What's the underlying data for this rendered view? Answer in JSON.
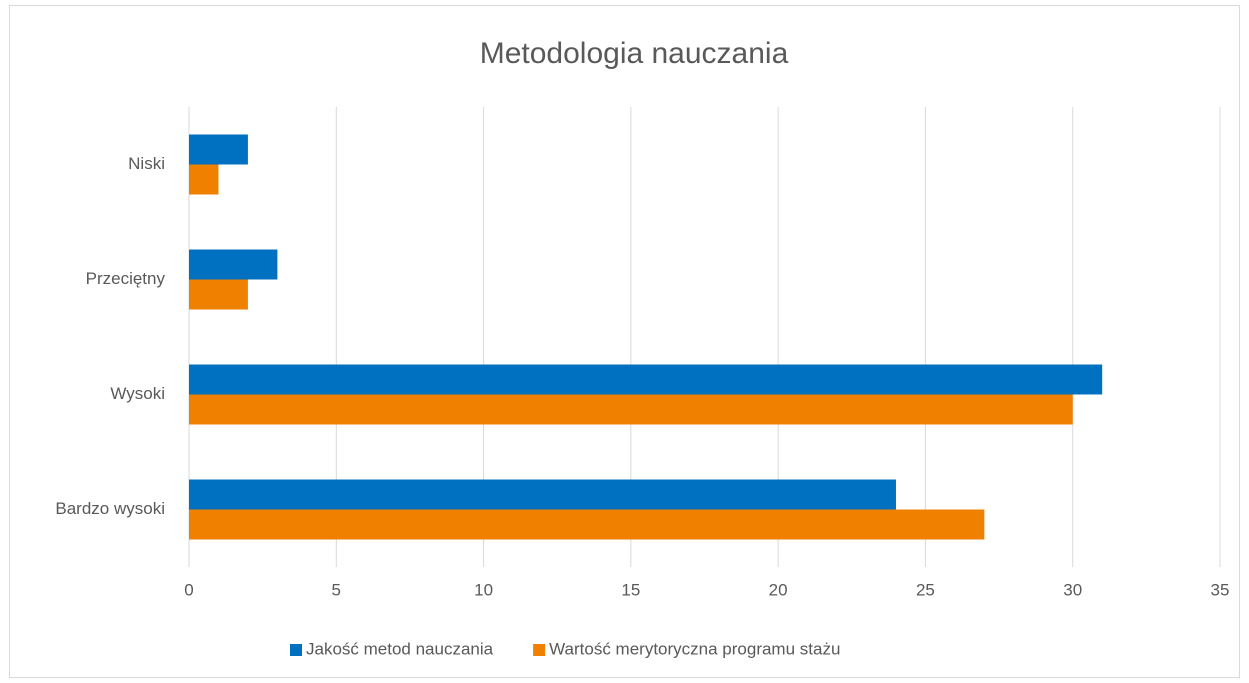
{
  "chart_data": {
    "type": "bar",
    "orientation": "horizontal",
    "title": "Metodologia nauczania",
    "categories": [
      "Niski",
      "Przeciętny",
      "Wysoki",
      "Bardzo wysoki"
    ],
    "series": [
      {
        "name": "Jakość metod nauczania",
        "color": "#0070c0",
        "values": [
          2,
          3,
          31,
          24
        ]
      },
      {
        "name": "Wartość merytoryczna programu stażu",
        "color": "#f08000",
        "values": [
          1,
          2,
          30,
          27
        ]
      }
    ],
    "xlim": [
      0,
      35
    ],
    "xticks": [
      0,
      5,
      10,
      15,
      20,
      25,
      30,
      35
    ],
    "grid": true,
    "legend": "bottom"
  }
}
